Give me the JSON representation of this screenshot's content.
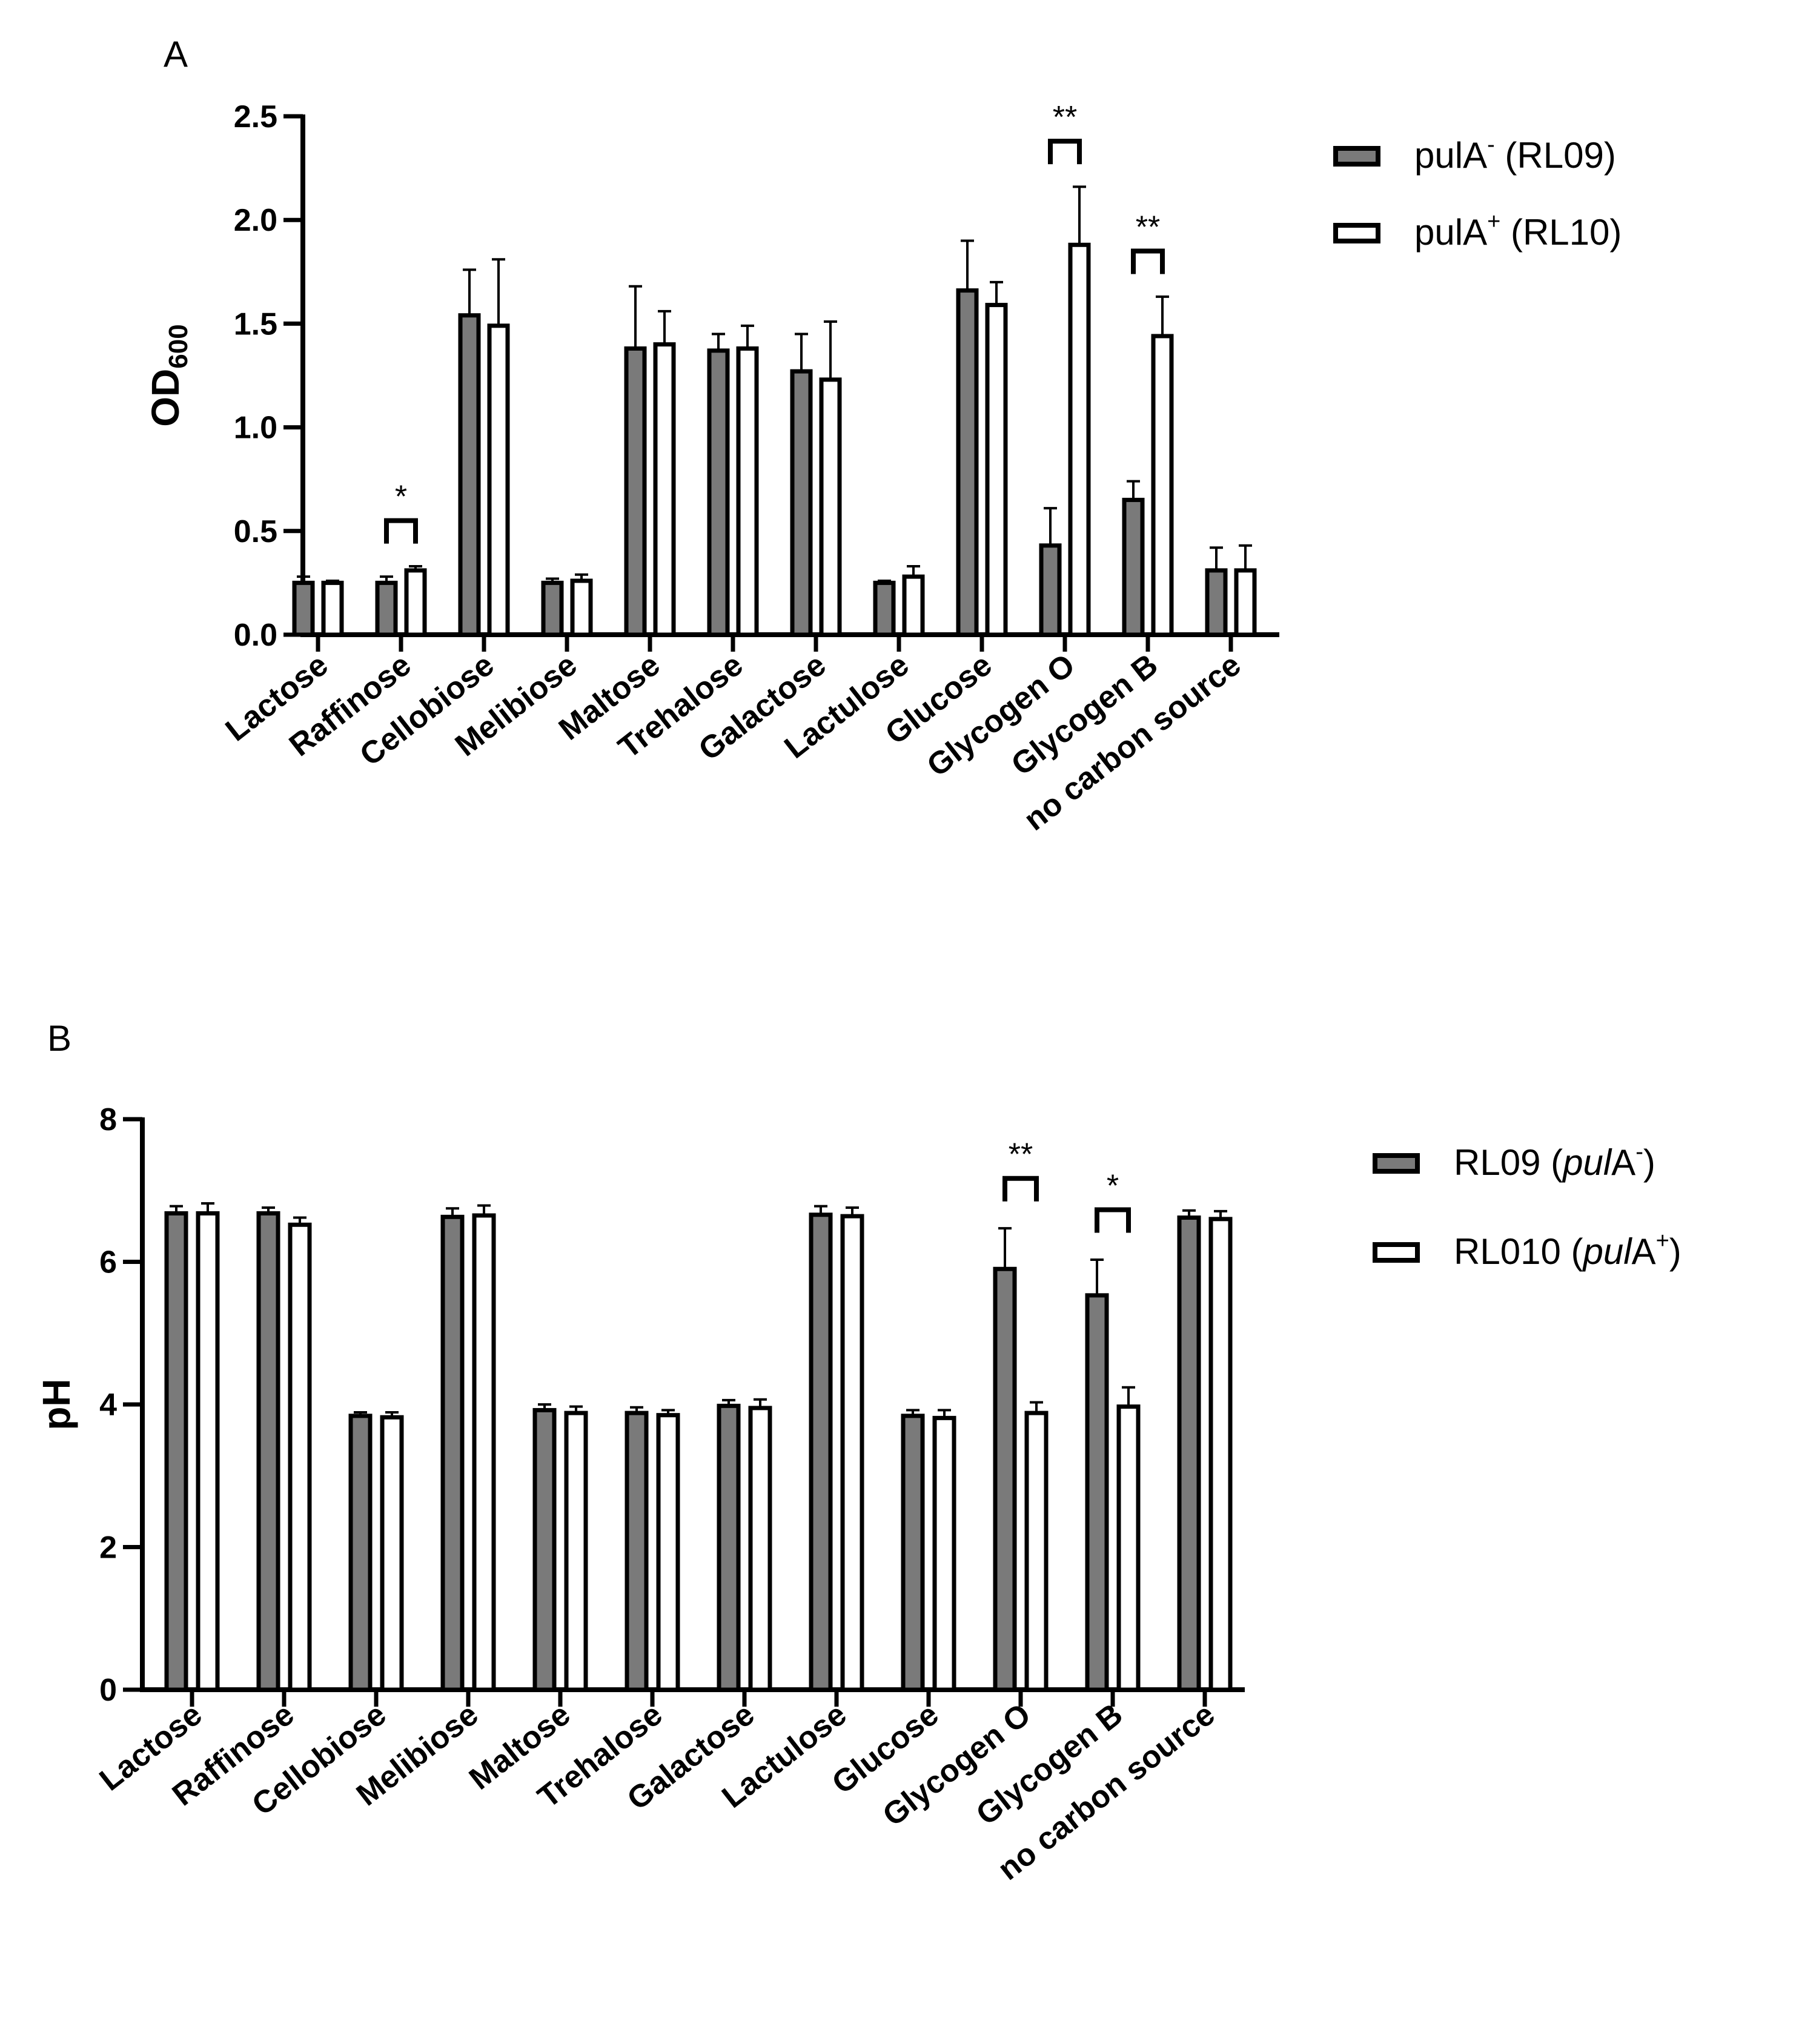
{
  "chart_data": [
    {
      "panel": "A",
      "type": "bar",
      "ylabel": "OD",
      "ylabel_sub": "600",
      "ylim": [
        0,
        2.5
      ],
      "yticks": [
        "0.0",
        "0.5",
        "1.0",
        "1.5",
        "2.0",
        "2.5"
      ],
      "categories": [
        "Lactose",
        "Raffinose",
        "Cellobiose",
        "Melibiose",
        "Maltose",
        "Trehalose",
        "Galactose",
        "Lactulose",
        "Glucose",
        "Glycogen O",
        "Glycogen B",
        "no carbon source"
      ],
      "series": [
        {
          "name": "pulA⁻ (RL09)",
          "color": "#7a7a7a",
          "values": [
            0.25,
            0.25,
            1.54,
            0.25,
            1.38,
            1.37,
            1.27,
            0.25,
            1.66,
            0.43,
            0.65,
            0.31
          ],
          "errors": [
            0.03,
            0.03,
            0.22,
            0.02,
            0.3,
            0.08,
            0.18,
            0.01,
            0.24,
            0.18,
            0.09,
            0.11
          ]
        },
        {
          "name": "pulA⁺ (RL10)",
          "color": "#ffffff",
          "values": [
            0.25,
            0.31,
            1.49,
            0.26,
            1.4,
            1.38,
            1.23,
            0.28,
            1.59,
            1.88,
            1.44,
            0.31
          ],
          "errors": [
            0.01,
            0.02,
            0.32,
            0.03,
            0.16,
            0.11,
            0.28,
            0.05,
            0.11,
            0.28,
            0.19,
            0.12
          ]
        }
      ],
      "legend": [
        {
          "prefix": "pulA",
          "sup": "-",
          "suffix": " (RL09)",
          "fill": "#7a7a7a"
        },
        {
          "prefix": "pulA",
          "sup": "+",
          "suffix": " (RL10)",
          "fill": "#ffffff"
        }
      ],
      "significance": [
        {
          "category": "Raffinose",
          "label": "*"
        },
        {
          "category": "Glycogen O",
          "label": "**"
        },
        {
          "category": "Glycogen B",
          "label": "**"
        }
      ]
    },
    {
      "panel": "B",
      "type": "bar",
      "ylabel": "pH",
      "ylim": [
        0,
        8
      ],
      "yticks": [
        "0",
        "2",
        "4",
        "6",
        "8"
      ],
      "categories": [
        "Lactose",
        "Raffinose",
        "Cellobiose",
        "Melibiose",
        "Maltose",
        "Trehalose",
        "Galactose",
        "Lactulose",
        "Glucose",
        "Glycogen O",
        "Glycogen B",
        "no carbon source"
      ],
      "series": [
        {
          "name": "RL09 (pulA⁻)",
          "color": "#7a7a7a",
          "values": [
            6.68,
            6.68,
            3.84,
            6.63,
            3.92,
            3.88,
            3.98,
            6.66,
            3.84,
            5.9,
            5.53,
            6.62
          ],
          "errors": [
            0.1,
            0.08,
            0.05,
            0.12,
            0.08,
            0.08,
            0.08,
            0.12,
            0.08,
            0.57,
            0.5,
            0.1
          ]
        },
        {
          "name": "RL010 (pulA⁺)",
          "color": "#ffffff",
          "values": [
            6.68,
            6.52,
            3.82,
            6.65,
            3.88,
            3.85,
            3.95,
            6.64,
            3.81,
            3.88,
            3.97,
            6.6
          ],
          "errors": [
            0.14,
            0.1,
            0.07,
            0.14,
            0.09,
            0.07,
            0.12,
            0.12,
            0.11,
            0.15,
            0.27,
            0.11
          ]
        }
      ],
      "legend": [
        {
          "prefix": "RL09 (",
          "italic": "pul",
          "mid": "A",
          "sup": "-",
          "suffix": ")",
          "fill": "#7a7a7a"
        },
        {
          "prefix": "RL010 (",
          "italic": "pul",
          "mid": "A",
          "sup": "+",
          "suffix": ")",
          "fill": "#ffffff"
        }
      ],
      "significance": [
        {
          "category": "Glycogen O",
          "label": "**"
        },
        {
          "category": "Glycogen B",
          "label": "*"
        }
      ]
    }
  ]
}
